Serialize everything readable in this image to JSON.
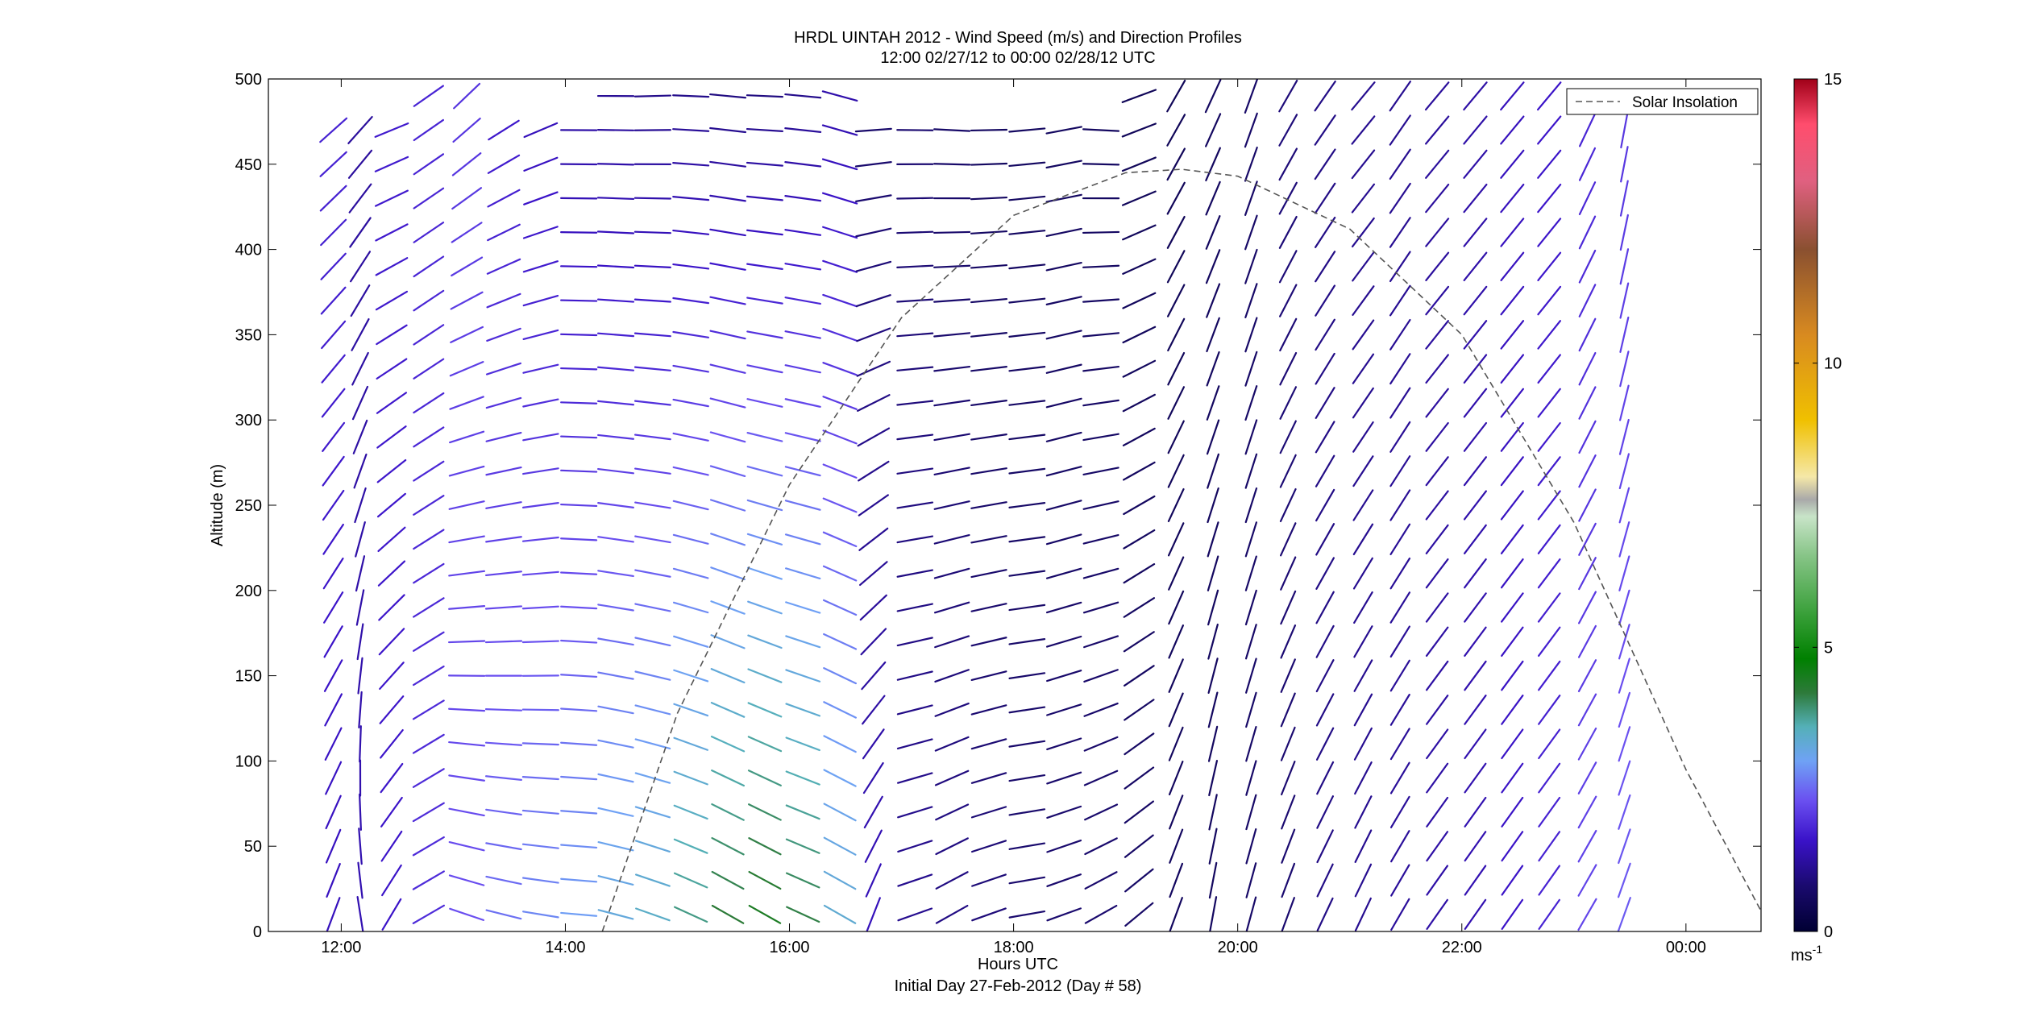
{
  "chart_data": {
    "type": "wind-barb-profile",
    "title_line1": "HRDL UINTAH 2012 - Wind Speed (m/s) and Direction Profiles",
    "title_line2": "12:00 02/27/12 to 00:00 02/28/12  UTC",
    "xlabel": "Hours UTC",
    "xlabel2": "Initial Day 27-Feb-2012 (Day # 58)",
    "ylabel": "Altitude (m)",
    "xlim": [
      11.35,
      24.67
    ],
    "ylim": [
      0,
      500
    ],
    "x_ticks": [
      {
        "value": 12,
        "label": "12:00"
      },
      {
        "value": 14,
        "label": "14:00"
      },
      {
        "value": 16,
        "label": "16:00"
      },
      {
        "value": 18,
        "label": "18:00"
      },
      {
        "value": 20,
        "label": "20:00"
      },
      {
        "value": 22,
        "label": "22:00"
      },
      {
        "value": 24,
        "label": "00:00"
      }
    ],
    "y_ticks": [
      0,
      50,
      100,
      150,
      200,
      250,
      300,
      350,
      400,
      450,
      500
    ],
    "legend": {
      "label": "Solar Insolation",
      "position": "top-right"
    },
    "colorbar": {
      "min": 0,
      "max": 15,
      "ticks": [
        0,
        5,
        10,
        15
      ],
      "unit_base": "ms",
      "unit_exp": "-1",
      "stops": [
        {
          "v": 0,
          "c": "#000033"
        },
        {
          "v": 0.8,
          "c": "#1a0a6e"
        },
        {
          "v": 1.6,
          "c": "#3a12c8"
        },
        {
          "v": 2.3,
          "c": "#6a4ff0"
        },
        {
          "v": 3.0,
          "c": "#6fa2f5"
        },
        {
          "v": 3.6,
          "c": "#54b0b8"
        },
        {
          "v": 4.2,
          "c": "#2d7a3a"
        },
        {
          "v": 4.8,
          "c": "#008000"
        },
        {
          "v": 5.6,
          "c": "#3aa03a"
        },
        {
          "v": 6.6,
          "c": "#86c486"
        },
        {
          "v": 7.3,
          "c": "#c8e4c8"
        },
        {
          "v": 7.6,
          "c": "#a9a9a9"
        },
        {
          "v": 8.0,
          "c": "#f5e8a8"
        },
        {
          "v": 9.0,
          "c": "#f0c000"
        },
        {
          "v": 10.5,
          "c": "#d88a20"
        },
        {
          "v": 12.0,
          "c": "#8a5030"
        },
        {
          "v": 13.2,
          "c": "#e06080"
        },
        {
          "v": 14.2,
          "c": "#ff4d6d"
        },
        {
          "v": 15.0,
          "c": "#a00018"
        }
      ]
    },
    "solar_insolation": {
      "style": "dashed",
      "color": "#555555",
      "points": [
        {
          "x": 14.33,
          "y": 0
        },
        {
          "x": 15.0,
          "y": 128
        },
        {
          "x": 16.0,
          "y": 262
        },
        {
          "x": 17.0,
          "y": 360
        },
        {
          "x": 18.0,
          "y": 420
        },
        {
          "x": 19.0,
          "y": 445
        },
        {
          "x": 19.5,
          "y": 447
        },
        {
          "x": 20.0,
          "y": 443
        },
        {
          "x": 21.0,
          "y": 412
        },
        {
          "x": 22.0,
          "y": 350
        },
        {
          "x": 23.0,
          "y": 240
        },
        {
          "x": 24.0,
          "y": 95
        },
        {
          "x": 24.67,
          "y": 12
        }
      ]
    },
    "wind_profiles": [
      {
        "time": 11.93,
        "y_max": 485,
        "dir": [
          200,
          230
        ],
        "speed": [
          1.5,
          1.8
        ]
      },
      {
        "time": 12.17,
        "y_max": 470,
        "dir": [
          170,
          225
        ],
        "speed": [
          1.4,
          1.2
        ]
      },
      {
        "time": 12.45,
        "y_max": 485,
        "dir": [
          210,
          250
        ],
        "speed": [
          1.6,
          1.7
        ]
      },
      {
        "time": 12.78,
        "y_max": 490,
        "dir": [
          240,
          235
        ],
        "speed": [
          1.9,
          1.8
        ]
      },
      {
        "time": 13.12,
        "y_max": 490,
        "dir": [
          290,
          225
        ],
        "speed": [
          2.3,
          2.0
        ]
      },
      {
        "time": 13.45,
        "y_max": 485,
        "dir": [
          285,
          235
        ],
        "speed": [
          2.6,
          1.6
        ]
      },
      {
        "time": 13.78,
        "y_max": 485,
        "dir": [
          280,
          245
        ],
        "speed": [
          2.8,
          1.4
        ]
      },
      {
        "time": 14.12,
        "y_max": 485,
        "dir": [
          275,
          270
        ],
        "speed": [
          3.0,
          1.2
        ]
      },
      {
        "time": 14.45,
        "y_max": 490,
        "dir": [
          285,
          270
        ],
        "speed": [
          3.3,
          1.1
        ]
      },
      {
        "time": 14.78,
        "y_max": 490,
        "dir": [
          290,
          268
        ],
        "speed": [
          3.5,
          1.0
        ]
      },
      {
        "time": 15.12,
        "y_max": 490,
        "dir": [
          295,
          272
        ],
        "speed": [
          3.9,
          1.0
        ]
      },
      {
        "time": 15.45,
        "y_max": 490,
        "dir": [
          300,
          275
        ],
        "speed": [
          4.3,
          0.9
        ]
      },
      {
        "time": 15.78,
        "y_max": 490,
        "dir": [
          300,
          272
        ],
        "speed": [
          4.5,
          0.9
        ]
      },
      {
        "time": 16.12,
        "y_max": 490,
        "dir": [
          295,
          275
        ],
        "speed": [
          4.2,
          1.0
        ]
      },
      {
        "time": 16.45,
        "y_max": 490,
        "dir": [
          300,
          285
        ],
        "speed": [
          3.4,
          1.3
        ]
      },
      {
        "time": 16.75,
        "y_max": 480,
        "dir": [
          200,
          270
        ],
        "speed": [
          1.5,
          0.7
        ]
      },
      {
        "time": 17.12,
        "y_max": 485,
        "dir": [
          250,
          272
        ],
        "speed": [
          1.1,
          0.8
        ]
      },
      {
        "time": 17.45,
        "y_max": 485,
        "dir": [
          240,
          275
        ],
        "speed": [
          1.0,
          0.7
        ]
      },
      {
        "time": 17.78,
        "y_max": 485,
        "dir": [
          250,
          270
        ],
        "speed": [
          0.9,
          0.6
        ]
      },
      {
        "time": 18.12,
        "y_max": 480,
        "dir": [
          260,
          265
        ],
        "speed": [
          0.8,
          0.6
        ]
      },
      {
        "time": 18.45,
        "y_max": 480,
        "dir": [
          250,
          260
        ],
        "speed": [
          0.8,
          0.6
        ]
      },
      {
        "time": 18.78,
        "y_max": 485,
        "dir": [
          240,
          275
        ],
        "speed": [
          0.8,
          0.6
        ]
      },
      {
        "time": 19.12,
        "y_max": 490,
        "dir": [
          230,
          250
        ],
        "speed": [
          0.7,
          0.5
        ]
      },
      {
        "time": 19.45,
        "y_max": 490,
        "dir": [
          200,
          210
        ],
        "speed": [
          0.6,
          0.5
        ]
      },
      {
        "time": 19.78,
        "y_max": 495,
        "dir": [
          190,
          205
        ],
        "speed": [
          0.6,
          0.6
        ]
      },
      {
        "time": 20.12,
        "y_max": 500,
        "dir": [
          195,
          200
        ],
        "speed": [
          0.7,
          0.7
        ]
      },
      {
        "time": 20.45,
        "y_max": 500,
        "dir": [
          200,
          210
        ],
        "speed": [
          0.8,
          0.9
        ]
      },
      {
        "time": 20.78,
        "y_max": 500,
        "dir": [
          205,
          215
        ],
        "speed": [
          1.0,
          1.0
        ]
      },
      {
        "time": 21.12,
        "y_max": 495,
        "dir": [
          205,
          220
        ],
        "speed": [
          1.1,
          1.1
        ]
      },
      {
        "time": 21.45,
        "y_max": 495,
        "dir": [
          210,
          215
        ],
        "speed": [
          1.2,
          1.1
        ]
      },
      {
        "time": 21.78,
        "y_max": 495,
        "dir": [
          215,
          220
        ],
        "speed": [
          1.3,
          1.2
        ]
      },
      {
        "time": 22.12,
        "y_max": 495,
        "dir": [
          215,
          220
        ],
        "speed": [
          1.4,
          1.3
        ]
      },
      {
        "time": 22.45,
        "y_max": 495,
        "dir": [
          215,
          220
        ],
        "speed": [
          1.6,
          1.5
        ]
      },
      {
        "time": 22.78,
        "y_max": 490,
        "dir": [
          215,
          220
        ],
        "speed": [
          1.8,
          1.6
        ]
      },
      {
        "time": 23.12,
        "y_max": 485,
        "dir": [
          210,
          205
        ],
        "speed": [
          2.2,
          1.8
        ]
      },
      {
        "time": 23.45,
        "y_max": 480,
        "dir": [
          200,
          190
        ],
        "speed": [
          2.4,
          2.0
        ]
      }
    ]
  }
}
